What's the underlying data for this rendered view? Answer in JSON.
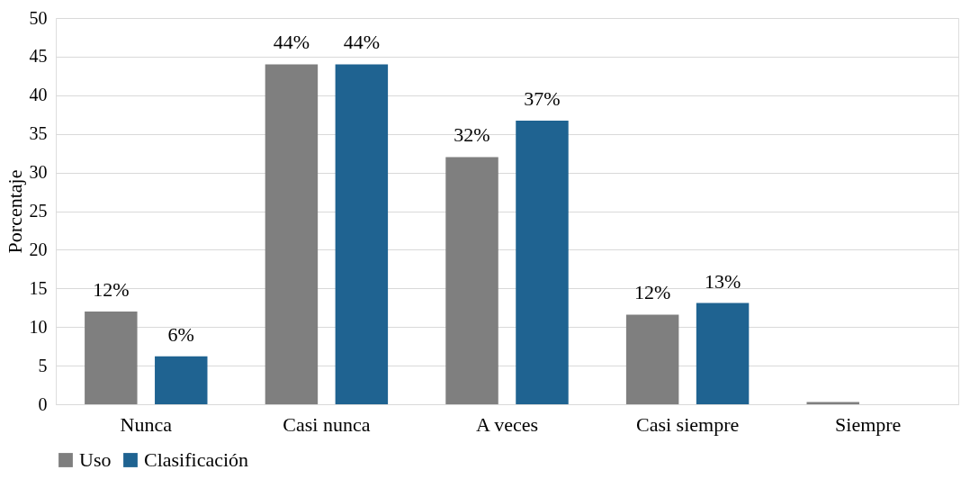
{
  "chart_data": {
    "type": "bar",
    "ylabel": "Porcentaje",
    "categories": [
      "Nunca",
      "Casi nunca",
      "A veces",
      "Casi siempre",
      "Siempre"
    ],
    "series": [
      {
        "name": "Uso",
        "color": "#7f7f7f",
        "values": [
          12,
          44,
          32,
          11.6,
          0.3
        ],
        "value_labels": [
          "12%",
          "44%",
          "32%",
          "12%",
          null
        ]
      },
      {
        "name": "Clasificación",
        "color": "#1f6391",
        "values": [
          6.2,
          44,
          36.7,
          13.1,
          0
        ],
        "value_labels": [
          "6%",
          "44%",
          "37%",
          "13%",
          null
        ]
      }
    ],
    "ylim": [
      0,
      50
    ],
    "yticks": [
      0,
      5,
      10,
      15,
      20,
      25,
      30,
      35,
      40,
      45,
      50
    ],
    "grid": "y",
    "legend": "bottom"
  }
}
